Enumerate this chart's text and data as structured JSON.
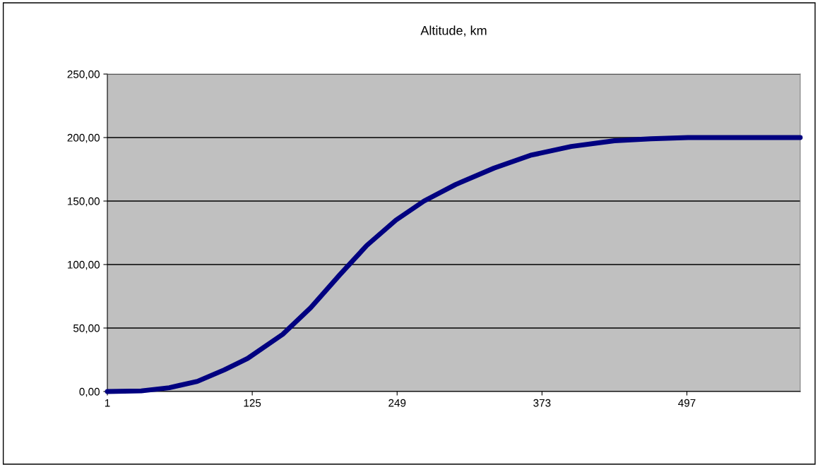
{
  "chart_data": {
    "type": "line",
    "title": "Altitude, km",
    "x": [
      1,
      30,
      54,
      78,
      101,
      121,
      151,
      175,
      200,
      223,
      248,
      272,
      299,
      332,
      363,
      398,
      435,
      466,
      498,
      594
    ],
    "series": [
      {
        "color": "#000080",
        "values": [
          0,
          0.5,
          3,
          8,
          17,
          26,
          45,
          66,
          92,
          115,
          135,
          150,
          163,
          176,
          186,
          193,
          197.5,
          199,
          200,
          200
        ]
      }
    ],
    "xlim": [
      1,
      594
    ],
    "xticks": [
      {
        "value": 1,
        "label": "1"
      },
      {
        "value": 125,
        "label": "125"
      },
      {
        "value": 249,
        "label": "249"
      },
      {
        "value": 373,
        "label": "373"
      },
      {
        "value": 497,
        "label": "497"
      }
    ],
    "ylim": [
      0,
      250
    ],
    "yticks": [
      {
        "value": 0,
        "label": "0,00"
      },
      {
        "value": 50,
        "label": "50,00"
      },
      {
        "value": 100,
        "label": "100,00"
      },
      {
        "value": 150,
        "label": "150,00"
      },
      {
        "value": 200,
        "label": "200,00"
      },
      {
        "value": 250,
        "label": "250,00"
      }
    ],
    "grid": "y",
    "legend": false,
    "marker": "none",
    "line_style": "solid"
  }
}
